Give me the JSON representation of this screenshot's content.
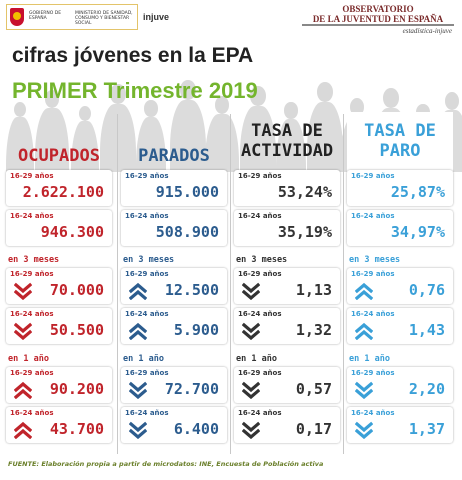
{
  "header": {
    "gov_text": "GOBIERNO DE ESPAÑA",
    "ministry_text": "MINISTERIO DE SANIDAD, CONSUMO Y BIENESTAR SOCIAL",
    "injuve": "injuve",
    "observatory_line1": "OBSERVATORIO",
    "observatory_line2": "DE LA JUVENTUD EN ESPAÑA",
    "observatory_sub": "estadística-injuve"
  },
  "title": "cifras jóvenes en la EPA",
  "subtitle": "PRIMER Trimestre 2019",
  "labels": {
    "age_1629": "16-29 años",
    "age_1624": "16-24 años",
    "three_months": "en 3 meses",
    "one_year": "en 1 año"
  },
  "columns": [
    {
      "title": "OCUPADOS",
      "color": "#c0242b",
      "title_color": "#c0242b",
      "total_1629": "2.622.100",
      "total_1624": "946.300",
      "q_1629": "70.000",
      "q_1629_dir": "down",
      "q_1624": "50.500",
      "q_1624_dir": "down",
      "y_1629": "90.200",
      "y_1629_dir": "up",
      "y_1624": "43.700",
      "y_1624_dir": "up"
    },
    {
      "title": "PARADOS",
      "color": "#2c5c8e",
      "title_color": "#2c5c8e",
      "total_1629": "915.000",
      "total_1624": "508.900",
      "q_1629": "12.500",
      "q_1629_dir": "up",
      "q_1624": "5.900",
      "q_1624_dir": "up",
      "y_1629": "72.700",
      "y_1629_dir": "down",
      "y_1624": "6.400",
      "y_1624_dir": "down"
    },
    {
      "title_line1": "TASA DE",
      "title_line2": "ACTIVIDAD",
      "color": "#333333",
      "title_color": "#222222",
      "total_1629": "53,24%",
      "total_1624": "35,19%",
      "q_1629": "1,13",
      "q_1629_dir": "down",
      "q_1624": "1,32",
      "q_1624_dir": "down",
      "y_1629": "0,57",
      "y_1629_dir": "down",
      "y_1624": "0,17",
      "y_1624_dir": "down"
    },
    {
      "title_line1": "TASA DE",
      "title_line2": "PARO",
      "color": "#3aa0d8",
      "title_color": "#3aa0d8",
      "total_1629": "25,87%",
      "total_1624": "34,97%",
      "q_1629": "0,76",
      "q_1629_dir": "up",
      "q_1624": "1,43",
      "q_1624_dir": "up",
      "y_1629": "2,20",
      "y_1629_dir": "down",
      "y_1624": "1,37",
      "y_1624_dir": "down"
    }
  ],
  "footer": "FUENTE: Elaboración propia a partir de microdatos: INE, Encuesta de Población activa"
}
